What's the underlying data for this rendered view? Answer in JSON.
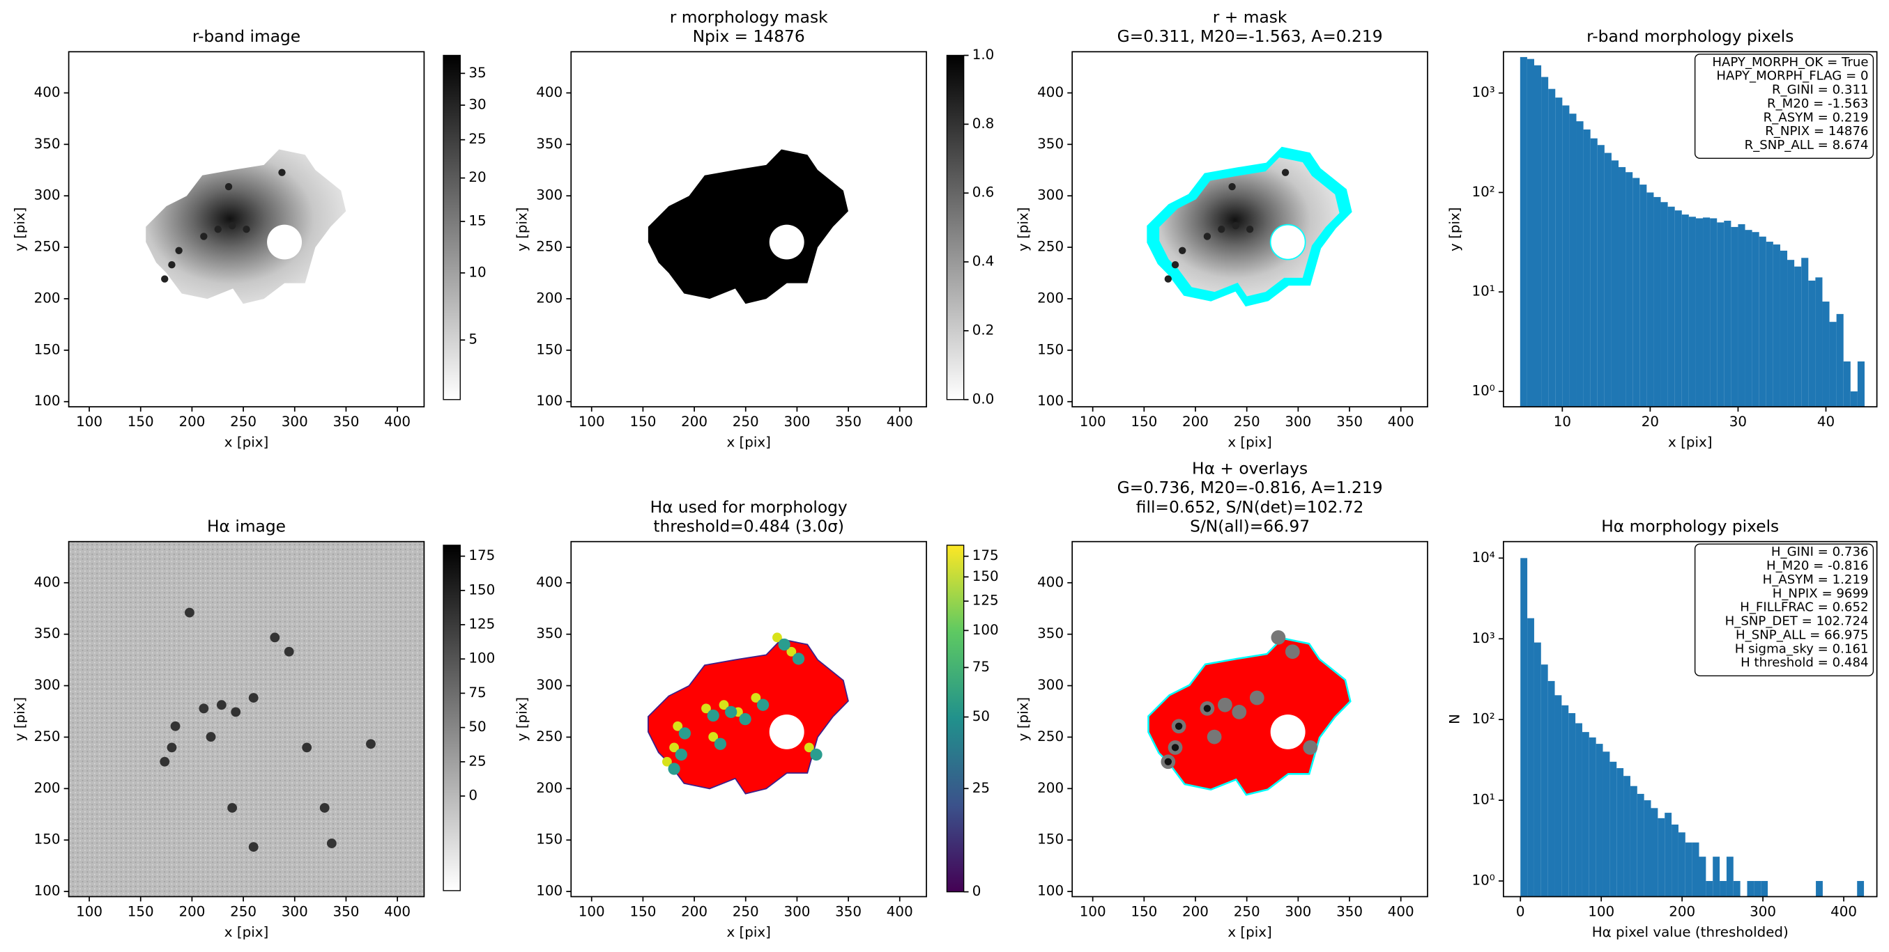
{
  "chart_data": [
    {
      "type": "image",
      "title": [
        "r-band image"
      ],
      "xlabel": "x [pix]",
      "ylabel": "y [pix]",
      "xlim": [
        80,
        426
      ],
      "ylim": [
        95,
        440
      ],
      "xticks": [
        100,
        150,
        200,
        250,
        300,
        350,
        400
      ],
      "yticks": [
        100,
        150,
        200,
        250,
        300,
        350,
        400
      ],
      "colorbar": {
        "cmap": "gray_r",
        "scale": "sqrt",
        "lim": [
          2,
          38
        ],
        "ticks": [
          5,
          10,
          15,
          20,
          25,
          30,
          35
        ]
      }
    },
    {
      "type": "image",
      "title": [
        "r morphology mask",
        "Npix = 14876"
      ],
      "xlabel": "x [pix]",
      "ylabel": "y [pix]",
      "xlim": [
        80,
        426
      ],
      "ylim": [
        95,
        440
      ],
      "xticks": [
        100,
        150,
        200,
        250,
        300,
        350,
        400
      ],
      "yticks": [
        100,
        150,
        200,
        250,
        300,
        350,
        400
      ],
      "colorbar": {
        "cmap": "gray_r",
        "scale": "linear",
        "lim": [
          0,
          1
        ],
        "ticks": [
          {
            "value": 0,
            "label": "0.0"
          },
          0.2,
          0.4,
          0.6,
          0.8,
          {
            "value": 1,
            "label": "1.0"
          }
        ]
      }
    },
    {
      "type": "image",
      "title": [
        "r + mask",
        "G=0.311, M20=-1.563, A=0.219"
      ],
      "xlabel": "x [pix]",
      "ylabel": "y [pix]",
      "xlim": [
        80,
        426
      ],
      "ylim": [
        95,
        440
      ],
      "xticks": [
        100,
        150,
        200,
        250,
        300,
        350,
        400
      ],
      "yticks": [
        100,
        150,
        200,
        250,
        300,
        350,
        400
      ]
    },
    {
      "type": "histogram",
      "title": [
        "r-band morphology pixels"
      ],
      "xlabel": "x [pix]",
      "ylabel": "y [pix]",
      "color": "#1f77b4",
      "yscale": "log",
      "xlim": [
        3.3,
        45.8
      ],
      "ylim": [
        0.7,
        2600
      ],
      "xticks": [
        10,
        20,
        30,
        40
      ],
      "yticks": [
        {
          "value": 1,
          "label": "10⁰"
        },
        {
          "value": 10,
          "label": "10¹"
        },
        {
          "value": 100,
          "label": "10²"
        },
        {
          "value": 1000,
          "label": "10³"
        }
      ],
      "bins": [
        5.2,
        6.0,
        6.8,
        7.6,
        8.4,
        9.2,
        10.0,
        10.8,
        11.6,
        12.4,
        13.2,
        14.0,
        14.8,
        15.6,
        16.4,
        17.2,
        18.0,
        18.8,
        19.6,
        20.4,
        21.2,
        22.0,
        22.8,
        23.6,
        24.4,
        25.2,
        26.0,
        26.8,
        27.6,
        28.4,
        29.2,
        30.0,
        30.8,
        31.6,
        32.4,
        33.2,
        34.0,
        34.8,
        35.6,
        36.4,
        37.2,
        38.0,
        38.8,
        39.6,
        40.4,
        41.2,
        42.0,
        42.8,
        43.6,
        44.4
      ],
      "values": [
        2300,
        2200,
        1900,
        1450,
        1100,
        900,
        750,
        620,
        520,
        430,
        350,
        300,
        250,
        210,
        180,
        160,
        140,
        120,
        100,
        90,
        80,
        72,
        66,
        60,
        57,
        55,
        56,
        55,
        50,
        52,
        45,
        48,
        42,
        40,
        36,
        32,
        30,
        26,
        21,
        18,
        22,
        13,
        14,
        8,
        5,
        6,
        2,
        1,
        2
      ],
      "annotations": [
        "HAPY_MORPH_OK = True",
        "HAPY_MORPH_FLAG = 0",
        "R_GINI = 0.311",
        "R_M20 = -1.563",
        "R_ASYM = 0.219",
        "R_NPIX = 14876",
        "R_SNP_ALL = 8.674"
      ]
    },
    {
      "type": "image",
      "title": [
        "Hα image"
      ],
      "xlabel": "x [pix]",
      "ylabel": "y [pix]",
      "xlim": [
        80,
        426
      ],
      "ylim": [
        95,
        440
      ],
      "xticks": [
        100,
        150,
        200,
        250,
        300,
        350,
        400
      ],
      "yticks": [
        100,
        150,
        200,
        250,
        300,
        350,
        400
      ],
      "colorbar": {
        "cmap": "gray_r",
        "scale": "linear",
        "lim": [
          -69,
          183
        ],
        "ticks": [
          0,
          25,
          50,
          75,
          100,
          125,
          150,
          175
        ]
      }
    },
    {
      "type": "image",
      "title": [
        "Hα used for morphology",
        "threshold=0.484 (3.0σ)"
      ],
      "xlabel": "x [pix]",
      "ylabel": "y [pix]",
      "xlim": [
        80,
        426
      ],
      "ylim": [
        95,
        440
      ],
      "xticks": [
        100,
        150,
        200,
        250,
        300,
        350,
        400
      ],
      "yticks": [
        100,
        150,
        200,
        250,
        300,
        350,
        400
      ],
      "colorbar": {
        "cmap": "viridis",
        "scale": "asinh",
        "lim": [
          0,
          190
        ],
        "ticks": [
          0,
          25,
          50,
          75,
          100,
          125,
          150,
          175
        ]
      }
    },
    {
      "type": "image",
      "title": [
        "Hα + overlays",
        "G=0.736, M20=-0.816, A=1.219",
        "fill=0.652, S/N(det)=102.72",
        "S/N(all)=66.97"
      ],
      "xlabel": "x [pix]",
      "ylabel": "y [pix]",
      "xlim": [
        80,
        426
      ],
      "ylim": [
        95,
        440
      ],
      "xticks": [
        100,
        150,
        200,
        250,
        300,
        350,
        400
      ],
      "yticks": [
        100,
        150,
        200,
        250,
        300,
        350,
        400
      ]
    },
    {
      "type": "histogram",
      "title": [
        "Hα morphology pixels"
      ],
      "xlabel": "Hα pixel value (thresholded)",
      "ylabel": "N",
      "color": "#1f77b4",
      "yscale": "log",
      "xlim": [
        -21,
        441
      ],
      "ylim": [
        0.64,
        16000
      ],
      "xticks": [
        0,
        100,
        200,
        300,
        400
      ],
      "yticks": [
        {
          "value": 1,
          "label": "10⁰"
        },
        {
          "value": 10,
          "label": "10¹"
        },
        {
          "value": 100,
          "label": "10²"
        },
        {
          "value": 1000,
          "label": "10³"
        },
        {
          "value": 10000,
          "label": "10⁴"
        }
      ],
      "bins": [
        0,
        8.5,
        17,
        25.5,
        34,
        42.5,
        51,
        59.5,
        68,
        76.5,
        85,
        93.5,
        102,
        110.5,
        119,
        127.5,
        136,
        144.5,
        153,
        161.5,
        170,
        178.5,
        187,
        195.5,
        204,
        212.5,
        221,
        229.5,
        238,
        246.5,
        255,
        263.5,
        272,
        280.5,
        289,
        297.5,
        306,
        314.5,
        323,
        331.5,
        340,
        348.5,
        357,
        365.5,
        374,
        382.5,
        391,
        399.5,
        408,
        416.5,
        425
      ],
      "values": [
        10000,
        1800,
        900,
        480,
        300,
        200,
        150,
        120,
        90,
        70,
        60,
        50,
        40,
        30,
        25,
        20,
        15,
        12,
        10,
        8,
        6,
        7,
        5,
        4,
        3,
        3,
        2,
        1,
        2,
        1,
        2,
        1,
        0,
        1,
        1,
        1,
        0,
        0,
        0,
        0,
        0,
        0,
        0,
        1,
        0,
        0,
        0,
        0,
        0,
        1
      ],
      "annotations": [
        "H_GINI = 0.736",
        "H_M20 = -0.816",
        "H_ASYM = 1.219",
        "H_NPIX = 9699",
        "H_FILLFRAC = 0.652",
        "H_SNP_DET = 102.724",
        "H_SNP_ALL = 66.975",
        "H sigma_sky = 0.161",
        "H threshold = 0.484"
      ]
    }
  ]
}
